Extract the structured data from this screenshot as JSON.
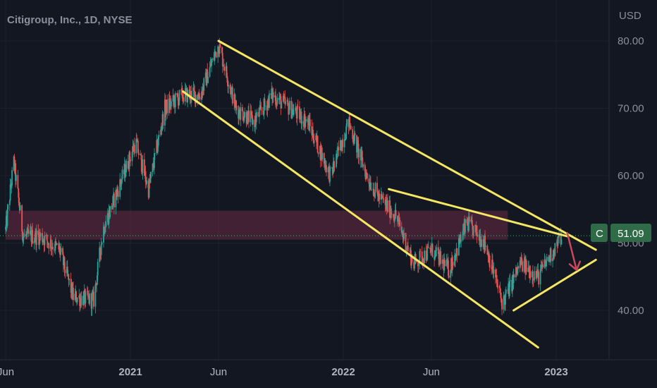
{
  "header": {
    "title": "Citigroup, Inc., 1D, NYSE"
  },
  "colors": {
    "background": "#131722",
    "up": "#26a69a",
    "down": "#ef5350",
    "trendline": "#f5e663",
    "zone": "#6b2a45",
    "arrow": "#c9485b",
    "badge": "#2e6b46",
    "price_line": "#4ba67a"
  },
  "price_badge": {
    "symbol": "C",
    "value": "51.09"
  },
  "chart_data": {
    "type": "candlestick",
    "title": "Citigroup, Inc., 1D, NYSE",
    "y_unit": "USD",
    "ylim": [
      33,
      86
    ],
    "x_ticks": [
      {
        "label": "Jun",
        "date": "2020-06-01",
        "bold": false
      },
      {
        "label": "2021",
        "date": "2021-01-01",
        "bold": true
      },
      {
        "label": "Jun",
        "date": "2021-06-01",
        "bold": false
      },
      {
        "label": "2022",
        "date": "2022-01-01",
        "bold": true
      },
      {
        "label": "Jun",
        "date": "2022-06-01",
        "bold": false
      },
      {
        "label": "2023",
        "date": "2023-01-01",
        "bold": true
      }
    ],
    "y_ticks": [
      "80.00",
      "70.00",
      "60.00",
      "50.00",
      "40.00"
    ],
    "last_price": 51.09,
    "close_path": [
      [
        "2020-06-01",
        52
      ],
      [
        "2020-06-15",
        62
      ],
      [
        "2020-07-01",
        51
      ],
      [
        "2020-08-01",
        51
      ],
      [
        "2020-09-01",
        49
      ],
      [
        "2020-09-25",
        42
      ],
      [
        "2020-10-30",
        41.5
      ],
      [
        "2020-11-15",
        52
      ],
      [
        "2020-12-15",
        59
      ],
      [
        "2021-01-10",
        65
      ],
      [
        "2021-02-01",
        58
      ],
      [
        "2021-03-01",
        70
      ],
      [
        "2021-04-01",
        72
      ],
      [
        "2021-05-01",
        72
      ],
      [
        "2021-06-01",
        79.5
      ],
      [
        "2021-07-01",
        70
      ],
      [
        "2021-08-01",
        68
      ],
      [
        "2021-09-01",
        72
      ],
      [
        "2021-10-01",
        70
      ],
      [
        "2021-11-01",
        68
      ],
      [
        "2021-12-10",
        60
      ],
      [
        "2022-01-10",
        68
      ],
      [
        "2022-02-10",
        60
      ],
      [
        "2022-03-01",
        57
      ],
      [
        "2022-04-01",
        54
      ],
      [
        "2022-05-01",
        47
      ],
      [
        "2022-06-01",
        49
      ],
      [
        "2022-07-01",
        46
      ],
      [
        "2022-08-01",
        53
      ],
      [
        "2022-09-01",
        50
      ],
      [
        "2022-10-01",
        41
      ],
      [
        "2022-11-01",
        47
      ],
      [
        "2022-12-01",
        45
      ],
      [
        "2023-01-10",
        51
      ]
    ],
    "drawings": {
      "trendlines": [
        {
          "name": "upper-channel-line",
          "from": [
            "2021-06-01",
            80
          ],
          "to": [
            "2023-03-10",
            49
          ]
        },
        {
          "name": "lower-channel-line",
          "from": [
            "2021-04-01",
            72.5
          ],
          "to": [
            "2022-12-01",
            34.5
          ]
        },
        {
          "name": "wedge-upper-line",
          "from": [
            "2022-03-20",
            58
          ],
          "to": [
            "2023-01-20",
            51
          ]
        },
        {
          "name": "wedge-lower-line",
          "from": [
            "2022-10-20",
            40
          ],
          "to": [
            "2023-03-10",
            47.5
          ]
        }
      ],
      "zone": {
        "name": "resistance-zone",
        "from": "2020-06-01",
        "to": "2022-10-10",
        "y_low": 50.5,
        "y_high": 54.8
      },
      "arrow": {
        "name": "down-arrow",
        "from": [
          "2023-01-20",
          51.5
        ],
        "to": [
          "2023-02-05",
          46
        ]
      }
    }
  }
}
